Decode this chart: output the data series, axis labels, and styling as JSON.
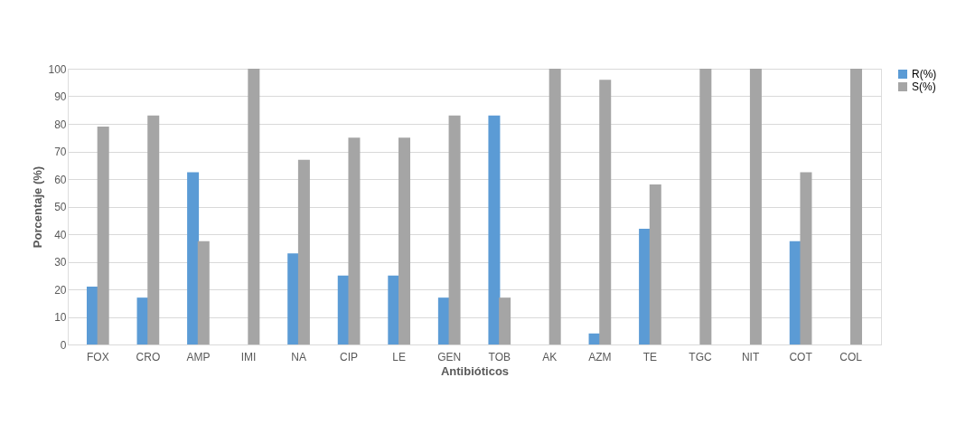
{
  "chart_data": {
    "type": "bar",
    "xlabel": "Antibióticos",
    "ylabel": "Porcentaje (%)",
    "categories": [
      "FOX",
      "CRO",
      "AMP",
      "IMI",
      "NA",
      "CIP",
      "LE",
      "GEN",
      "TOB",
      "AK",
      "AZM",
      "TE",
      "TGC",
      "NIT",
      "COT",
      "COL"
    ],
    "series": [
      {
        "name": "R(%)",
        "color": "#5b9bd5",
        "values": [
          21,
          17,
          62.5,
          0,
          33,
          25,
          25,
          17,
          83,
          0,
          4,
          42,
          0,
          0,
          37.5,
          0
        ]
      },
      {
        "name": "S(%)",
        "color": "#a5a5a5",
        "values": [
          79,
          83,
          37.5,
          100,
          67,
          75,
          75,
          83,
          17,
          100,
          96,
          58,
          100,
          100,
          62.5,
          100
        ]
      }
    ],
    "ylim": [
      0,
      100
    ],
    "yticks": [
      0,
      10,
      20,
      30,
      40,
      50,
      60,
      70,
      80,
      90,
      100
    ],
    "grid": "y",
    "legend": "right"
  }
}
